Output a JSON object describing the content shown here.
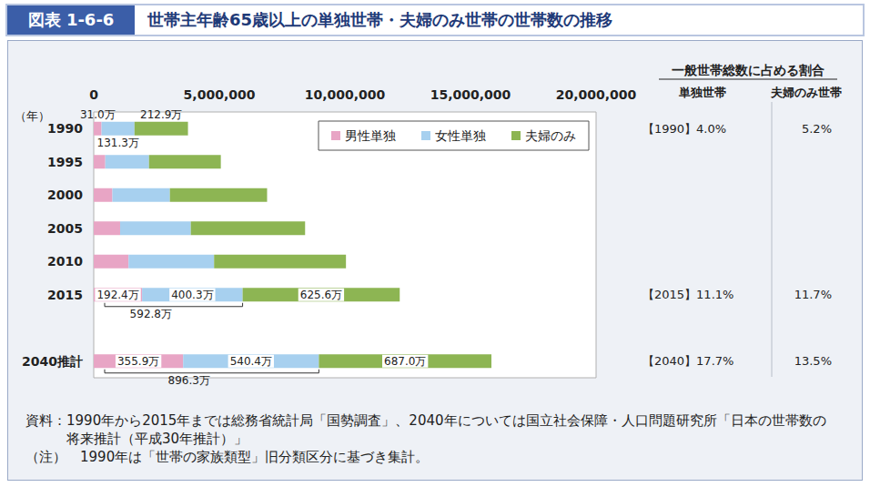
{
  "header": {
    "figure_label": "図表 1-6-6",
    "title": "世帯主年齢65歳以上の単独世帯・夫婦のみ世帯の世帯数の推移"
  },
  "chart_data": {
    "type": "bar",
    "orientation": "horizontal",
    "stacked": true,
    "data_labels": true,
    "grid": false,
    "legend": "top-right",
    "ylabel": "（年）",
    "categories": [
      "1990",
      "1995",
      "2000",
      "2005",
      "2010",
      "2015",
      null,
      "2040推計"
    ],
    "series": [
      {
        "name": "男性単独",
        "color": "#e8a5c5",
        "values": [
          310000,
          460000,
          742000,
          1051000,
          1386000,
          1924000,
          null,
          3559000
        ],
        "value_labels": [
          "31.0万",
          null,
          null,
          null,
          null,
          "192.4万",
          null,
          "355.9万"
        ]
      },
      {
        "name": "女性単独",
        "color": "#a7d0ef",
        "values": [
          1313000,
          1740000,
          2290000,
          2814000,
          3405000,
          4003000,
          null,
          5404000
        ],
        "value_labels": [
          "131.3万",
          null,
          null,
          null,
          null,
          "400.3万",
          null,
          "540.4万"
        ]
      },
      {
        "name": "夫婦のみ",
        "color": "#8db553",
        "values": [
          2129000,
          2860000,
          3870000,
          4550000,
          5251000,
          6256000,
          null,
          6870000
        ],
        "value_labels": [
          "212.9万",
          null,
          null,
          null,
          null,
          "625.6万",
          null,
          "687.0万"
        ]
      }
    ],
    "xlim": [
      0,
      20000000
    ],
    "xticks": [
      0,
      {
        "value": 5000000,
        "label": "5,000,000"
      },
      {
        "value": 10000000,
        "label": "10,000,000"
      },
      {
        "value": 15000000,
        "label": "15,000,000"
      },
      {
        "value": 20000000,
        "label": "20,000,000"
      }
    ],
    "annotations": [
      {
        "category": "2015",
        "text": "592.8万",
        "series": [
          "男性単独",
          "女性単独"
        ]
      },
      {
        "category": "2040推計",
        "text": "896.3万",
        "series": [
          "男性単独",
          "女性単独"
        ]
      }
    ]
  },
  "side_table": {
    "title": "一般世帯総数に占める割合",
    "columns": [
      "単独世帯",
      "夫婦のみ世帯"
    ],
    "rows": [
      {
        "category": "1990",
        "cells": [
          "【1990】4.0%",
          "5.2%"
        ]
      },
      {
        "category": "2015",
        "cells": [
          "【2015】11.1%",
          "11.7%"
        ]
      },
      {
        "category": "2040推計",
        "cells": [
          "【2040】17.7%",
          "13.5%"
        ]
      }
    ]
  },
  "notes": [
    "資料：1990年から2015年までは総務省統計局「国勢調査」、2040年については国立社会保障・人口問題研究所「日本の世帯数の将来推計（平成30年推計）」",
    "（注）　1990年は「世帯の家族類型」旧分類区分に基づき集計。"
  ]
}
